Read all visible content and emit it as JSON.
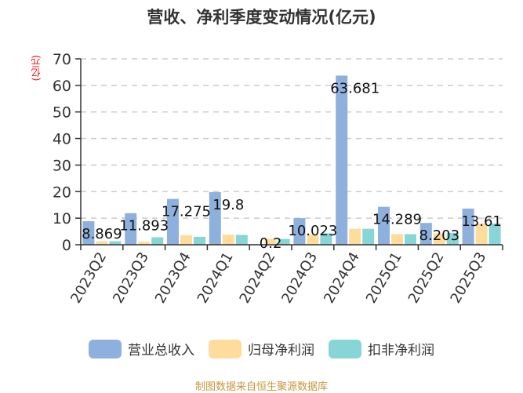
{
  "title": "营收、净利季度变动情况(亿元)",
  "y_unit_label": "(亿元)",
  "legend": [
    {
      "label": "营业总收入",
      "color": "#8eb0dc"
    },
    {
      "label": "归母净利润",
      "color": "#fedc9c"
    },
    {
      "label": "扣非净利润",
      "color": "#87d5d6"
    }
  ],
  "source": "制图数据来自恒生聚源数据库",
  "chart_data": {
    "type": "bar",
    "title": "营收、净利季度变动情况(亿元)",
    "xlabel": "",
    "ylabel": "(亿元)",
    "ylim": [
      0,
      70
    ],
    "yticks": [
      0,
      10,
      20,
      30,
      40,
      50,
      60,
      70
    ],
    "grid": true,
    "legend_position": "bottom",
    "categories": [
      "2023Q2",
      "2023Q3",
      "2023Q4",
      "2024Q1",
      "2024Q2",
      "2024Q3",
      "2024Q4",
      "2025Q1",
      "2025Q2",
      "2025Q3"
    ],
    "series": [
      {
        "name": "营业总收入",
        "color": "#8eb0dc",
        "values": [
          8.869,
          11.893,
          17.275,
          19.8,
          0.2,
          10.023,
          63.681,
          14.289,
          8.203,
          13.61
        ]
      },
      {
        "name": "归母净利润",
        "color": "#fedc9c",
        "values": [
          1.3,
          1.2,
          3.6,
          3.8,
          2.2,
          3.8,
          6.0,
          4.0,
          4.3,
          8.0
        ]
      },
      {
        "name": "扣非净利润",
        "color": "#87d5d6",
        "values": [
          1.3,
          2.8,
          3.0,
          3.7,
          2.2,
          4.3,
          6.0,
          4.0,
          4.5,
          8.0
        ]
      }
    ],
    "data_labels": [
      "8.869",
      "11.893",
      "17.275",
      "19.8",
      "0.2",
      "10.023",
      "63.681",
      "14.289",
      "8.203",
      "13.61"
    ]
  }
}
